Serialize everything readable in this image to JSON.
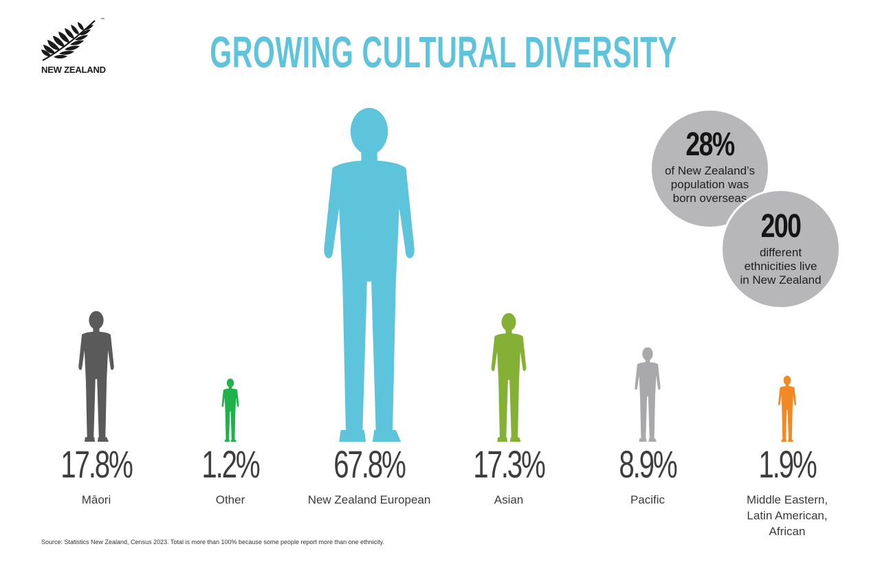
{
  "logo": {
    "text": "NEW ZEALAND",
    "tm": "™"
  },
  "title": {
    "text": "GROWING CULTURAL DIVERSITY",
    "color": "#5ec4dc"
  },
  "chart_data": {
    "type": "bar",
    "title": "GROWING CULTURAL DIVERSITY",
    "unit": "%",
    "categories": [
      "Māori",
      "Other",
      "New Zealand European",
      "Asian",
      "Pacific",
      "Middle Eastern, Latin American, African"
    ],
    "values": [
      17.8,
      1.2,
      67.8,
      17.3,
      8.9,
      1.9
    ],
    "value_labels": [
      "17.8%",
      "1.2%",
      "67.8%",
      "17.3%",
      "8.9%",
      "1.9%"
    ],
    "label_lines": [
      [
        "Māori"
      ],
      [
        "Other"
      ],
      [
        "New Zealand European"
      ],
      [
        "Asian"
      ],
      [
        "Pacific"
      ],
      [
        "Middle Eastern,",
        "Latin American,",
        "African"
      ]
    ],
    "colors": [
      "#5a5a5a",
      "#1fb24a",
      "#5ec4dc",
      "#84b135",
      "#a9a9ab",
      "#f18a24"
    ],
    "marks": "human-silhouettes"
  },
  "bubbles": [
    {
      "number": "28%",
      "text_lines": [
        "of New Zealand’s",
        "population was",
        "born overseas"
      ],
      "color": "#b7b7b9"
    },
    {
      "number": "200",
      "text_lines": [
        "different",
        "ethnicities live",
        "in New Zealand"
      ],
      "color": "#b7b7b9"
    }
  ],
  "source": "Source: Statistics New Zealand, Census 2023. Total is more than 100% because some people report more than one ethnicity."
}
